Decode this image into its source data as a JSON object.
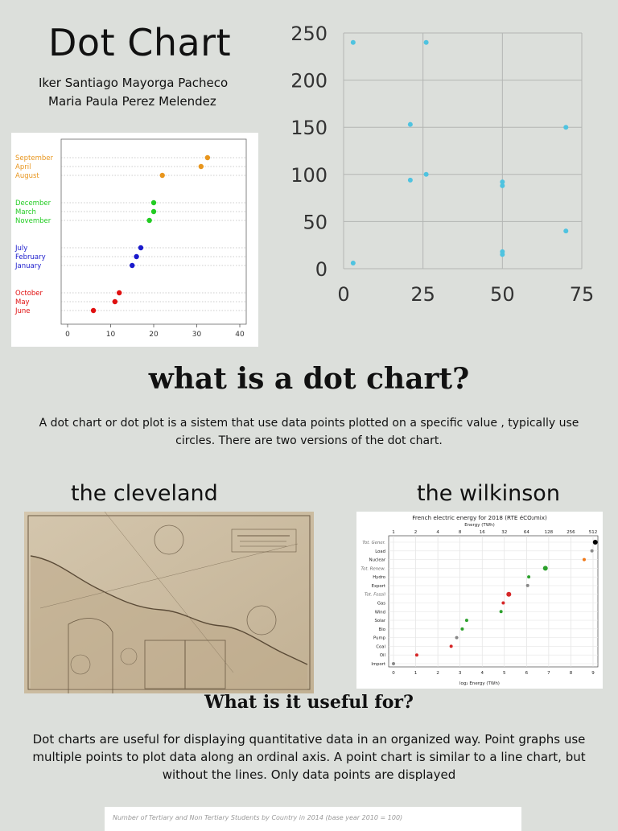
{
  "header": {
    "title": "Dot Chart",
    "author_1": "Iker Santiago Mayorga Pacheco",
    "author_2": "Maria Paula Perez Melendez"
  },
  "section_what": {
    "heading": "what is a dot chart?",
    "text": "A dot chart or dot plot is a sistem that use data points plotted on a specific value , typically use circles. There are two versions of the dot chart."
  },
  "versions": {
    "cleveland_label": "the cleveland",
    "wilkinson_label": "the wilkinson"
  },
  "section_useful": {
    "heading": "What is it useful for?",
    "text": "Dot charts are useful for displaying quantitative data in an organized way. Point graphs use multiple points to plot data along an ordinal axis. A point chart is similar to a line chart, but without the lines. Only data points are displayed"
  },
  "bottom_card": {
    "caption": "Number of Tertiary and Non Tertiary Students by Country in 2014 (base year 2010 = 100)"
  },
  "chart_data": [
    {
      "type": "scatter",
      "title": "",
      "xlim": [
        0,
        75
      ],
      "ylim": [
        0,
        250
      ],
      "x_ticks": [
        "0",
        "25",
        "50",
        "75"
      ],
      "y_ticks": [
        "0",
        "50",
        "100",
        "150",
        "200",
        "250"
      ],
      "grid": true,
      "color": "#4fc3e0",
      "points": [
        {
          "x": 3,
          "y": 240
        },
        {
          "x": 26,
          "y": 240
        },
        {
          "x": 21,
          "y": 153
        },
        {
          "x": 70,
          "y": 150
        },
        {
          "x": 21,
          "y": 94
        },
        {
          "x": 26,
          "y": 100
        },
        {
          "x": 50,
          "y": 92
        },
        {
          "x": 50,
          "y": 88
        },
        {
          "x": 70,
          "y": 40
        },
        {
          "x": 50,
          "y": 18
        },
        {
          "x": 50,
          "y": 15
        },
        {
          "x": 3,
          "y": 6
        }
      ]
    },
    {
      "type": "scatter",
      "title": "",
      "xlim": [
        0,
        40
      ],
      "x_ticks": [
        "0",
        "10",
        "20",
        "30",
        "40"
      ],
      "groups": [
        {
          "color": "#e8961e",
          "rows": [
            {
              "label": "September",
              "value": 32.5
            },
            {
              "label": "April",
              "value": 31
            },
            {
              "label": "August",
              "value": 22
            }
          ]
        },
        {
          "color": "#22cc22",
          "rows": [
            {
              "label": "December",
              "value": 20
            },
            {
              "label": "March",
              "value": 20
            },
            {
              "label": "November",
              "value": 19
            }
          ]
        },
        {
          "color": "#1a1acc",
          "rows": [
            {
              "label": "July",
              "value": 17
            },
            {
              "label": "February",
              "value": 16
            },
            {
              "label": "January",
              "value": 15
            }
          ]
        },
        {
          "color": "#e01010",
          "rows": [
            {
              "label": "October",
              "value": 12
            },
            {
              "label": "May",
              "value": 11
            },
            {
              "label": "June",
              "value": 6
            }
          ]
        }
      ]
    },
    {
      "type": "scatter",
      "title": "French electric energy for 2018 (RTE éCO₂mix)",
      "xlabel": "log₂ Energy (TWh)",
      "x2label": "Energy (TWh)",
      "xlim": [
        0,
        9
      ],
      "x_ticks": [
        "0",
        "1",
        "2",
        "3",
        "4",
        "5",
        "6",
        "7",
        "8",
        "9"
      ],
      "x2_ticks": [
        "1",
        "2",
        "4",
        "8",
        "16",
        "32",
        "64",
        "128",
        "256",
        "512"
      ],
      "rows": [
        {
          "label": "Tot. Gener.",
          "value": 9.1,
          "color": "#000000",
          "italic": true
        },
        {
          "label": "Load",
          "value": 8.95,
          "color": "#888888"
        },
        {
          "label": "Nuclear",
          "value": 8.6,
          "color": "#f07818"
        },
        {
          "label": "Tot. Renew.",
          "value": 6.85,
          "color": "#2ca02c",
          "italic": true
        },
        {
          "label": "Hydro",
          "value": 6.1,
          "color": "#2ca02c"
        },
        {
          "label": "Export",
          "value": 6.05,
          "color": "#888888"
        },
        {
          "label": "Tot. Fossil",
          "value": 5.2,
          "color": "#d62728",
          "italic": true
        },
        {
          "label": "Gas",
          "value": 4.95,
          "color": "#d62728"
        },
        {
          "label": "Wind",
          "value": 4.85,
          "color": "#2ca02c"
        },
        {
          "label": "Solar",
          "value": 3.3,
          "color": "#2ca02c"
        },
        {
          "label": "Bio",
          "value": 3.1,
          "color": "#2ca02c"
        },
        {
          "label": "Pump",
          "value": 2.85,
          "color": "#888888"
        },
        {
          "label": "Coal",
          "value": 2.6,
          "color": "#d62728"
        },
        {
          "label": "Oil",
          "value": 1.05,
          "color": "#d62728"
        },
        {
          "label": "Import",
          "value": 0,
          "color": "#888888"
        }
      ]
    }
  ]
}
